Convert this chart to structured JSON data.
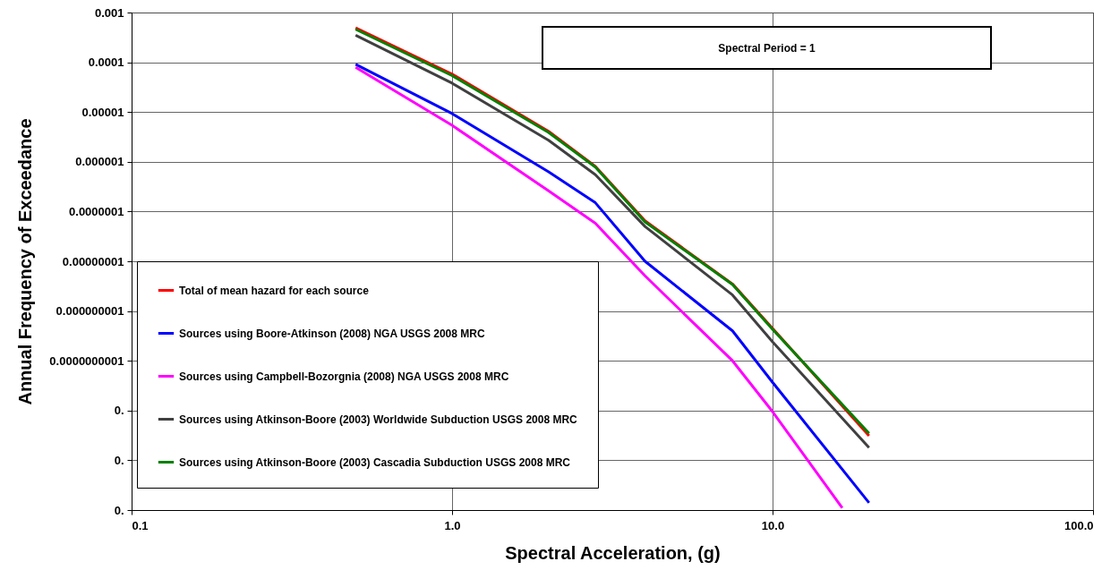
{
  "chart_data": {
    "type": "line",
    "xlabel": "Spectral Acceleration, (g)",
    "ylabel": "Annual Frequency of Exceedance",
    "annotations": [
      "Spectral Period = 1"
    ],
    "log": "xy",
    "grid": true,
    "legend": "bottom left",
    "marker": "none",
    "line_style": "solid",
    "xlim": [
      0.1,
      100
    ],
    "xticks": [
      0.1,
      {
        "value": 1,
        "label": "1.0"
      },
      {
        "value": 10,
        "label": "10.0"
      },
      {
        "value": 100,
        "label": "100.0"
      }
    ],
    "ylim": [
      1e-13,
      0.001
    ],
    "yticks": [
      {
        "value": 1e-13,
        "label": "0."
      },
      {
        "value": 1e-12,
        "label": "0."
      },
      {
        "value": 1e-11,
        "label": "0."
      },
      {
        "value": 1e-10,
        "label": "0.0000000001"
      },
      {
        "value": 1e-09,
        "label": "0.000000001"
      },
      {
        "value": 1e-08,
        "label": "0.00000001"
      },
      {
        "value": 1e-07,
        "label": "0.0000001"
      },
      {
        "value": 1e-06,
        "label": "0.000001"
      },
      {
        "value": 1e-05,
        "label": "0.00001"
      },
      {
        "value": 0.0001,
        "label": "0.0001"
      },
      {
        "value": 0.001,
        "label": "0.001"
      }
    ],
    "x": [
      0.5,
      1,
      2,
      2.8,
      4,
      7.5,
      10,
      20
    ],
    "series": [
      {
        "name": "Total of mean hazard for each source",
        "color": "#ff0000",
        "values": [
          0.00049,
          5.8e-05,
          4.1e-06,
          8.1e-07,
          6.5e-08,
          3.5e-09,
          4.5e-10,
          3.1e-12
        ]
      },
      {
        "name": "Sources using Boore-Atkinson (2008) NGA USGS 2008 MRC",
        "color": "#0000ff",
        "values": [
          9.1e-05,
          9.3e-06,
          6.3e-07,
          1.5e-07,
          1e-08,
          4e-10,
          3.7e-11,
          1.4e-13
        ]
      },
      {
        "name": "Sources using Campbell-Bozorgnia (2008) NGA USGS 2008 MRC",
        "color": "#ff00ff",
        "x": [
          0.5,
          1,
          2,
          2.8,
          4,
          7.5,
          10,
          16.5
        ],
        "values": [
          7.9e-05,
          5.4e-06,
          2.6e-07,
          5.8e-08,
          5.1e-09,
          1e-10,
          9.5e-12,
          1.1e-13
        ]
      },
      {
        "name": "Sources using Atkinson-Boore (2003) Worldwide Subduction USGS 2008 MRC",
        "color": "#404040",
        "values": [
          0.00035,
          3.8e-05,
          2.7e-06,
          5.5e-07,
          5e-08,
          2.1e-09,
          2.4e-10,
          1.8e-12
        ]
      },
      {
        "name": "Sources using Atkinson-Boore (2003) Cascadia Subduction USGS 2008 MRC",
        "color": "#008000",
        "values": [
          0.00046,
          5.4e-05,
          3.9e-06,
          7.8e-07,
          6.2e-08,
          3.4e-09,
          4.3e-10,
          3.5e-12
        ]
      }
    ]
  }
}
